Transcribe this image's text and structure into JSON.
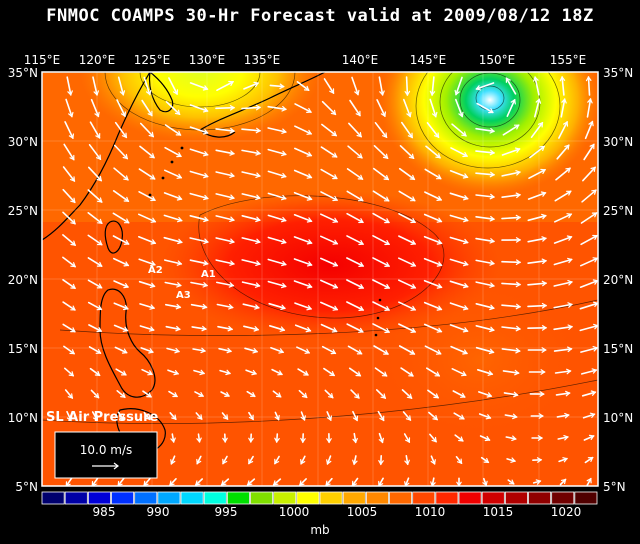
{
  "title": "FNMOC COAMPS 30-Hr Forecast valid at 2009/08/12 18Z",
  "top_lon_labels": [
    "115°E",
    "120°E",
    "125°E",
    "130°E",
    "135°E",
    "140°E",
    "145°E",
    "150°E",
    "155°E"
  ],
  "lat_labels": [
    "35°N",
    "30°N",
    "25°N",
    "20°N",
    "15°N",
    "10°N",
    "5°N"
  ],
  "field_label": "SL Air Pressure",
  "wind_ref_label": "10.0 m/s",
  "stations": [
    "A1",
    "A2",
    "A3"
  ],
  "colorbar": {
    "unit": "mb",
    "tick_labels": [
      "985",
      "990",
      "995",
      "1000",
      "1005",
      "1010",
      "1015",
      "1020"
    ],
    "colors": [
      "#00006e",
      "#0000a6",
      "#0000d8",
      "#0030ff",
      "#0070ff",
      "#00a8ff",
      "#00d8ff",
      "#00ffe0",
      "#00e000",
      "#80e000",
      "#c8f000",
      "#ffff00",
      "#ffd000",
      "#ffa800",
      "#ff8800",
      "#ff6800",
      "#ff4800",
      "#ff2800",
      "#f00000",
      "#d00000",
      "#b00000",
      "#900000",
      "#700000",
      "#500000"
    ]
  }
}
